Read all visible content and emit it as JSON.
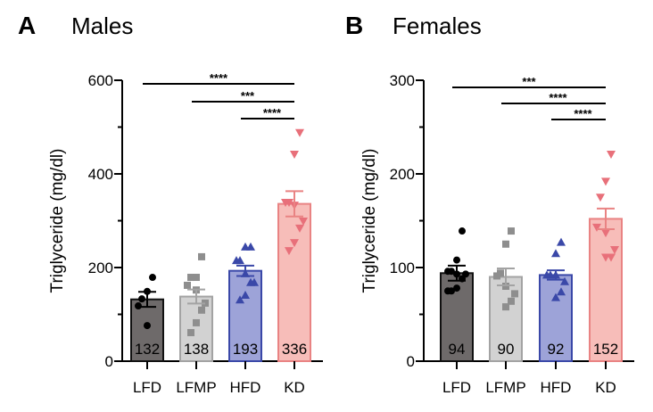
{
  "chart_data": [
    {
      "type": "bar",
      "panel_letter": "A",
      "title": "Males",
      "ylabel": "Triglyceride (mg/dl)",
      "xlabel": "",
      "ylim": [
        0,
        600
      ],
      "yticks": [
        0,
        200,
        400,
        600
      ],
      "categories": [
        "LFD",
        "LFMP",
        "HFD",
        "KD"
      ],
      "values": [
        132,
        138,
        193,
        336
      ],
      "value_labels": [
        "132",
        "138",
        "193",
        "336"
      ],
      "sem": [
        16,
        15,
        11,
        27
      ],
      "points": [
        [
          179,
          149,
          133,
          118,
          76
        ],
        [
          223,
          179,
          179,
          162,
          152,
          124,
          109,
          82,
          61
        ],
        [
          244,
          244,
          215,
          215,
          187,
          168,
          168,
          141,
          131
        ],
        [
          488,
          442,
          339,
          339,
          333,
          299,
          284,
          253,
          236
        ]
      ],
      "significance": [
        {
          "from": "LFD",
          "to": "KD",
          "label": "****"
        },
        {
          "from": "LFMP",
          "to": "KD",
          "label": "***"
        },
        {
          "from": "HFD",
          "to": "KD",
          "label": "****"
        }
      ]
    },
    {
      "type": "bar",
      "panel_letter": "B",
      "title": "Females",
      "ylabel": "Triglyceride (mg/dl)",
      "xlabel": "",
      "ylim": [
        0,
        300
      ],
      "yticks": [
        0,
        100,
        200,
        300
      ],
      "categories": [
        "LFD",
        "LFMP",
        "HFD",
        "KD"
      ],
      "values": [
        94,
        90,
        92,
        152
      ],
      "value_labels": [
        "94",
        "90",
        "92",
        "152"
      ],
      "sem": [
        8,
        9,
        5,
        11
      ],
      "points": [
        [
          139,
          108,
          96,
          96,
          93,
          93,
          88,
          78,
          75,
          75
        ],
        [
          139,
          125,
          94,
          91,
          80,
          72,
          64,
          58
        ],
        [
          127,
          115,
          92,
          92,
          92,
          85,
          74,
          68
        ],
        [
          221,
          192,
          175,
          143,
          137,
          119,
          111,
          111
        ]
      ],
      "significance": [
        {
          "from": "LFD",
          "to": "KD",
          "label": "***"
        },
        {
          "from": "LFMP",
          "to": "KD",
          "label": "****"
        },
        {
          "from": "HFD",
          "to": "KD",
          "label": "****"
        }
      ]
    }
  ],
  "colors": {
    "LFD": {
      "fill": "#6e6a6a",
      "stroke": "#111111",
      "point": "#000000"
    },
    "LFMP": {
      "fill": "#d2d2d2",
      "stroke": "#a3a3a3",
      "point": "#8e8e8e"
    },
    "HFD": {
      "fill": "#9da3d8",
      "stroke": "#3a48a8",
      "point": "#3a48a8"
    },
    "KD": {
      "fill": "#f7bdb9",
      "stroke": "#e98383",
      "point": "#e8707a"
    }
  },
  "markers": {
    "LFD": "circle",
    "LFMP": "square",
    "HFD": "triangle-up",
    "KD": "triangle-down"
  }
}
